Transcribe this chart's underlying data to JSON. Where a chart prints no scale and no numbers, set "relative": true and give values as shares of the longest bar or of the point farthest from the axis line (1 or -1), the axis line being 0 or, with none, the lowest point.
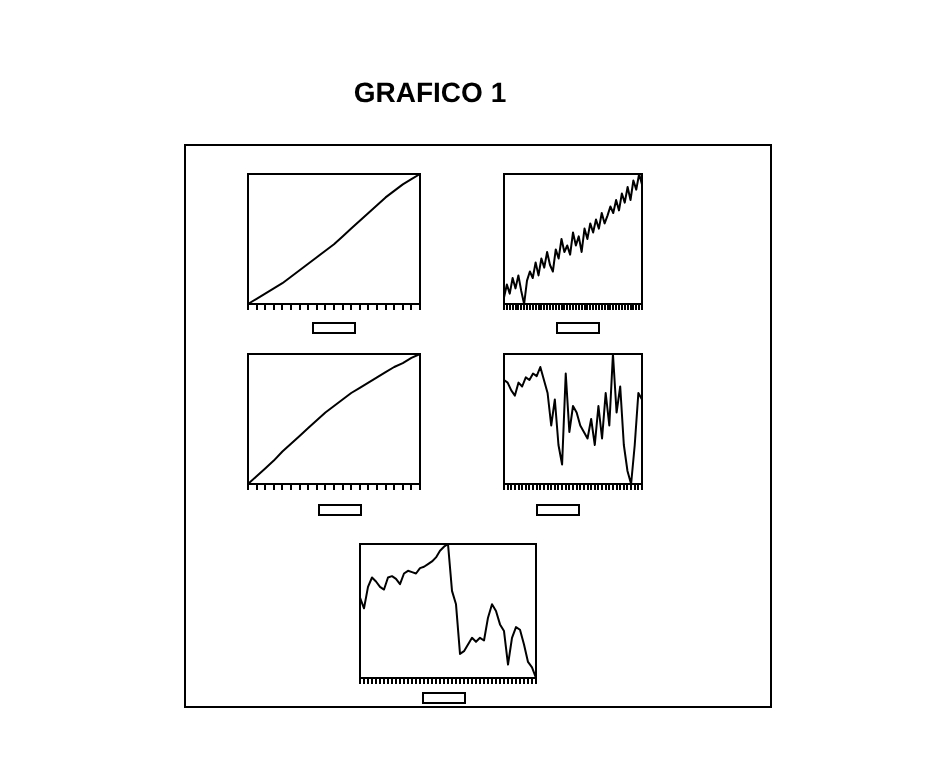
{
  "chart_data": [
    {
      "type": "line",
      "title": "GRAFICO 1",
      "relative": true,
      "tick_labels": false,
      "grid": false,
      "legend": false,
      "categories": [
        null,
        null,
        null,
        null,
        null,
        null,
        null,
        null,
        null,
        null,
        null,
        null,
        null,
        null,
        null,
        null,
        null,
        null,
        null,
        null,
        null
      ],
      "series": [
        {
          "color": "#000000",
          "values": [
            0,
            0.04,
            0.08,
            0.12,
            0.16,
            0.21,
            0.26,
            0.31,
            0.36,
            0.41,
            0.46,
            0.52,
            0.58,
            0.64,
            0.7,
            0.76,
            0.82,
            0.87,
            0.92,
            0.96,
            1
          ]
        }
      ]
    },
    {
      "type": "line",
      "relative": true,
      "tick_labels": false,
      "grid": false,
      "legend": false,
      "categories": [
        null,
        null,
        null,
        null,
        null,
        null,
        null,
        null,
        null,
        null,
        null,
        null,
        null,
        null,
        null,
        null,
        null,
        null,
        null,
        null,
        null,
        null,
        null,
        null,
        null,
        null,
        null,
        null,
        null,
        null,
        null,
        null,
        null,
        null,
        null,
        null,
        null,
        null,
        null,
        null,
        null,
        null,
        null,
        null,
        null,
        null,
        null,
        null,
        null
      ],
      "series": [
        {
          "color": "#000000",
          "values": [
            0.05,
            0.15,
            0.08,
            0.2,
            0.12,
            0.22,
            0.1,
            0,
            0.18,
            0.25,
            0.2,
            0.32,
            0.22,
            0.35,
            0.28,
            0.4,
            0.3,
            0.25,
            0.42,
            0.35,
            0.5,
            0.4,
            0.45,
            0.38,
            0.55,
            0.45,
            0.52,
            0.4,
            0.58,
            0.5,
            0.62,
            0.55,
            0.65,
            0.58,
            0.7,
            0.62,
            0.68,
            0.75,
            0.7,
            0.8,
            0.72,
            0.85,
            0.78,
            0.9,
            0.8,
            0.95,
            0.88,
            1,
            0.92
          ]
        }
      ]
    },
    {
      "type": "line",
      "relative": true,
      "tick_labels": false,
      "grid": false,
      "legend": false,
      "categories": [
        null,
        null,
        null,
        null,
        null,
        null,
        null,
        null,
        null,
        null,
        null,
        null,
        null,
        null,
        null,
        null,
        null,
        null,
        null,
        null,
        null
      ],
      "series": [
        {
          "color": "#000000",
          "values": [
            0,
            0.06,
            0.12,
            0.18,
            0.25,
            0.31,
            0.37,
            0.43,
            0.49,
            0.55,
            0.6,
            0.65,
            0.7,
            0.74,
            0.78,
            0.82,
            0.86,
            0.9,
            0.93,
            0.97,
            1
          ]
        }
      ]
    },
    {
      "type": "line",
      "relative": true,
      "tick_labels": false,
      "grid": false,
      "legend": false,
      "categories": [
        null,
        null,
        null,
        null,
        null,
        null,
        null,
        null,
        null,
        null,
        null,
        null,
        null,
        null,
        null,
        null,
        null,
        null,
        null,
        null,
        null,
        null,
        null,
        null,
        null,
        null,
        null,
        null,
        null,
        null,
        null,
        null,
        null,
        null,
        null,
        null,
        null,
        null,
        null
      ],
      "series": [
        {
          "color": "#000000",
          "values": [
            0.8,
            0.78,
            0.72,
            0.68,
            0.78,
            0.75,
            0.82,
            0.8,
            0.85,
            0.83,
            0.9,
            0.8,
            0.7,
            0.45,
            0.65,
            0.3,
            0.15,
            0.85,
            0.4,
            0.6,
            0.55,
            0.45,
            0.4,
            0.35,
            0.5,
            0.3,
            0.6,
            0.35,
            0.7,
            0.45,
            1,
            0.55,
            0.75,
            0.3,
            0.1,
            0,
            0.3,
            0.7,
            0.65
          ]
        }
      ]
    },
    {
      "type": "line",
      "relative": true,
      "tick_labels": false,
      "grid": false,
      "legend": false,
      "categories": [
        null,
        null,
        null,
        null,
        null,
        null,
        null,
        null,
        null,
        null,
        null,
        null,
        null,
        null,
        null,
        null,
        null,
        null,
        null,
        null,
        null,
        null,
        null,
        null,
        null,
        null,
        null,
        null,
        null,
        null,
        null,
        null,
        null,
        null,
        null,
        null,
        null,
        null,
        null,
        null,
        null,
        null,
        null,
        null,
        null
      ],
      "series": [
        {
          "color": "#000000",
          "values": [
            0.6,
            0.52,
            0.68,
            0.75,
            0.72,
            0.68,
            0.66,
            0.75,
            0.76,
            0.74,
            0.7,
            0.78,
            0.8,
            0.79,
            0.78,
            0.82,
            0.83,
            0.85,
            0.87,
            0.9,
            0.95,
            0.98,
            1,
            0.65,
            0.55,
            0.18,
            0.2,
            0.25,
            0.3,
            0.27,
            0.3,
            0.28,
            0.45,
            0.55,
            0.5,
            0.4,
            0.35,
            0.1,
            0.3,
            0.38,
            0.36,
            0.25,
            0.12,
            0.08,
            0
          ]
        }
      ]
    }
  ]
}
